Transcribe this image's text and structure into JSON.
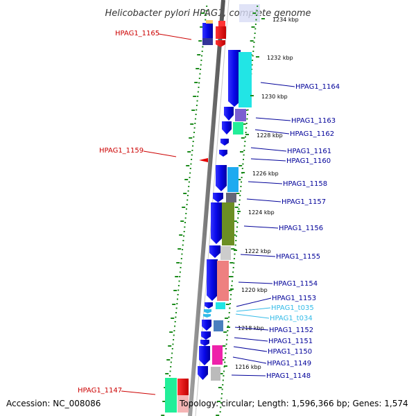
{
  "title": "Helicobacter pylori HPAG1, complete genome",
  "footer": {
    "accession": "Accession: NC_008086",
    "summary": "Topology: circular; Length: 1,596,366 bp; Genes: 1,574"
  },
  "colors": {
    "forward_feature": "#0a0ae6",
    "reverse_feature": "#e60000",
    "label_forward": "#000099",
    "label_reverse": "#cc0000",
    "label_rna": "#33bbe8",
    "tick": "#1a8a1a"
  },
  "scale_ticks": [
    "1234 kbp",
    "1232 kbp",
    "1230 kbp",
    "1228 kbp",
    "1226 kbp",
    "1224 kbp",
    "1222 kbp",
    "1220 kbp",
    "1218 kbp",
    "1216 kbp"
  ],
  "gene_labels_left": [
    "HPAG1_1165",
    "HPAG1_1159",
    "HPAG1_1147"
  ],
  "gene_labels_right": [
    "HPAG1_1164",
    "HPAG1_1163",
    "HPAG1_1162",
    "HPAG1_1161",
    "HPAG1_1160",
    "HPAG1_1158",
    "HPAG1_1157",
    "HPAG1_1156",
    "HPAG1_1155",
    "HPAG1_1154",
    "HPAG1_1153",
    "HPAG1_t035",
    "HPAG1_t034",
    "HPAG1_1152",
    "HPAG1_1151",
    "HPAG1_1150",
    "HPAG1_1149",
    "HPAG1_1148"
  ]
}
